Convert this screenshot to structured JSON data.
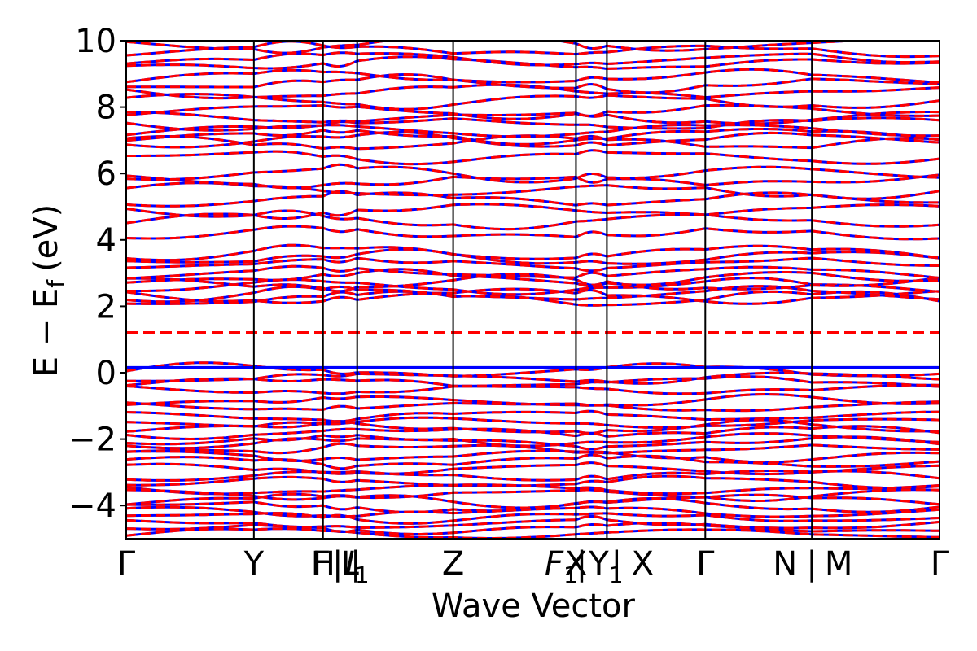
{
  "chart_data": {
    "type": "line",
    "title": "",
    "xlabel": "Wave Vector",
    "ylabel": "E − E",
    "ylabel_sub": "f",
    "ylabel_unit": "(eV)",
    "ylim": [
      -5,
      10
    ],
    "xlim": [
      0,
      1
    ],
    "y_ticks": [
      -4,
      -2,
      0,
      2,
      4,
      6,
      8,
      10
    ],
    "y_tick_labels": [
      "−4",
      "−2",
      "0",
      "2",
      "4",
      "6",
      "8",
      "10"
    ],
    "kpoints": [
      {
        "label": "Γ",
        "x": 0.0
      },
      {
        "label": "Y",
        "x": 0.157
      },
      {
        "label": "F",
        "x": 0.24
      },
      {
        "label": "H",
        "x": 0.242
      },
      {
        "label": "|",
        "x": 0.26
      },
      {
        "label": "L",
        "x": 0.275
      },
      {
        "label": "|",
        "x": 0.282
      },
      {
        "label": "I",
        "x": 0.284,
        "sub": "1"
      },
      {
        "label": "Z",
        "x": 0.402
      },
      {
        "label": "F",
        "x": 0.535,
        "sub": "1"
      },
      {
        "label": "X",
        "x": 0.553
      },
      {
        "label": "|",
        "x": 0.56
      },
      {
        "label": "Y",
        "x": 0.59,
        "sub": "1"
      },
      {
        "label": "|",
        "x": 0.603
      },
      {
        "label": "X",
        "x": 0.635
      },
      {
        "label": "Γ",
        "x": 0.712
      },
      {
        "label": "N",
        "x": 0.81
      },
      {
        "label": "|",
        "x": 0.843
      },
      {
        "label": "M",
        "x": 0.876
      },
      {
        "label": "Γ",
        "x": 1.0
      }
    ],
    "vlines": [
      0.157,
      0.242,
      0.284,
      0.402,
      0.553,
      0.591,
      0.712,
      0.843
    ],
    "series": [
      {
        "style": "solid",
        "color": "#0000ff"
      },
      {
        "style": "dashed",
        "color": "#ff0000"
      }
    ],
    "flat_levels": {
      "solid_fermi": 0.15,
      "dashed_fermi": 1.2
    },
    "approx_bands": {
      "valence_top": [
        0.05,
        -0.15,
        -0.3,
        -0.5,
        -0.85,
        -1.0,
        -1.3,
        -1.5,
        -1.65,
        -1.8,
        -2.0,
        -2.1,
        -2.3,
        -2.5,
        -2.7,
        -2.9,
        -3.1,
        -3.3,
        -3.5,
        -3.65,
        -3.85,
        -4.0,
        -4.2,
        -4.35,
        -4.55,
        -4.7,
        -4.85
      ],
      "conduction": [
        2.2,
        2.3,
        2.35,
        2.6,
        2.7,
        2.85,
        3.0,
        3.3,
        3.45,
        3.6,
        4.2,
        4.6,
        4.9,
        5.2,
        5.5,
        5.8,
        6.0,
        6.5,
        6.9,
        7.0,
        7.15,
        7.3,
        7.5,
        7.7,
        7.9,
        8.2,
        8.45,
        8.7,
        8.9,
        9.3,
        9.45,
        9.7,
        9.9
      ]
    }
  }
}
